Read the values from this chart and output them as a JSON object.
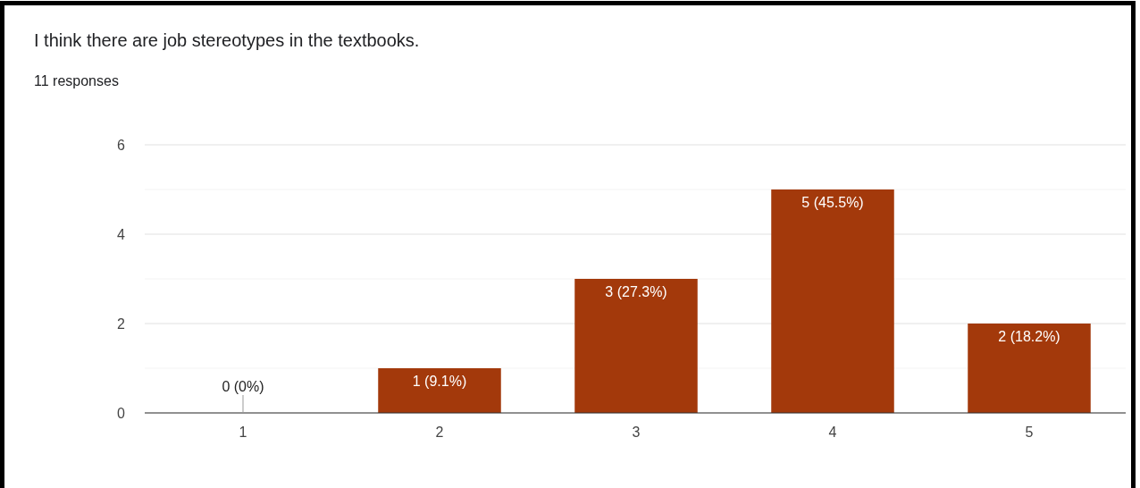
{
  "chart_data": {
    "type": "bar",
    "title": "I think there are job stereotypes in the textbooks.",
    "subtitle": "11 responses",
    "categories": [
      "1",
      "2",
      "3",
      "4",
      "5"
    ],
    "values": [
      0,
      1,
      3,
      5,
      2
    ],
    "value_labels": [
      "0 (0%)",
      "1 (9.1%)",
      "3 (27.3%)",
      "5 (45.5%)",
      "2 (18.2%)"
    ],
    "color": "#a3390b",
    "ylim": [
      0,
      6
    ],
    "yticks": [
      0,
      {
        "value": 1,
        "label": null
      },
      2,
      {
        "value": 3,
        "label": null
      },
      4,
      {
        "value": 5,
        "label": null
      },
      6
    ],
    "grid": "y"
  }
}
